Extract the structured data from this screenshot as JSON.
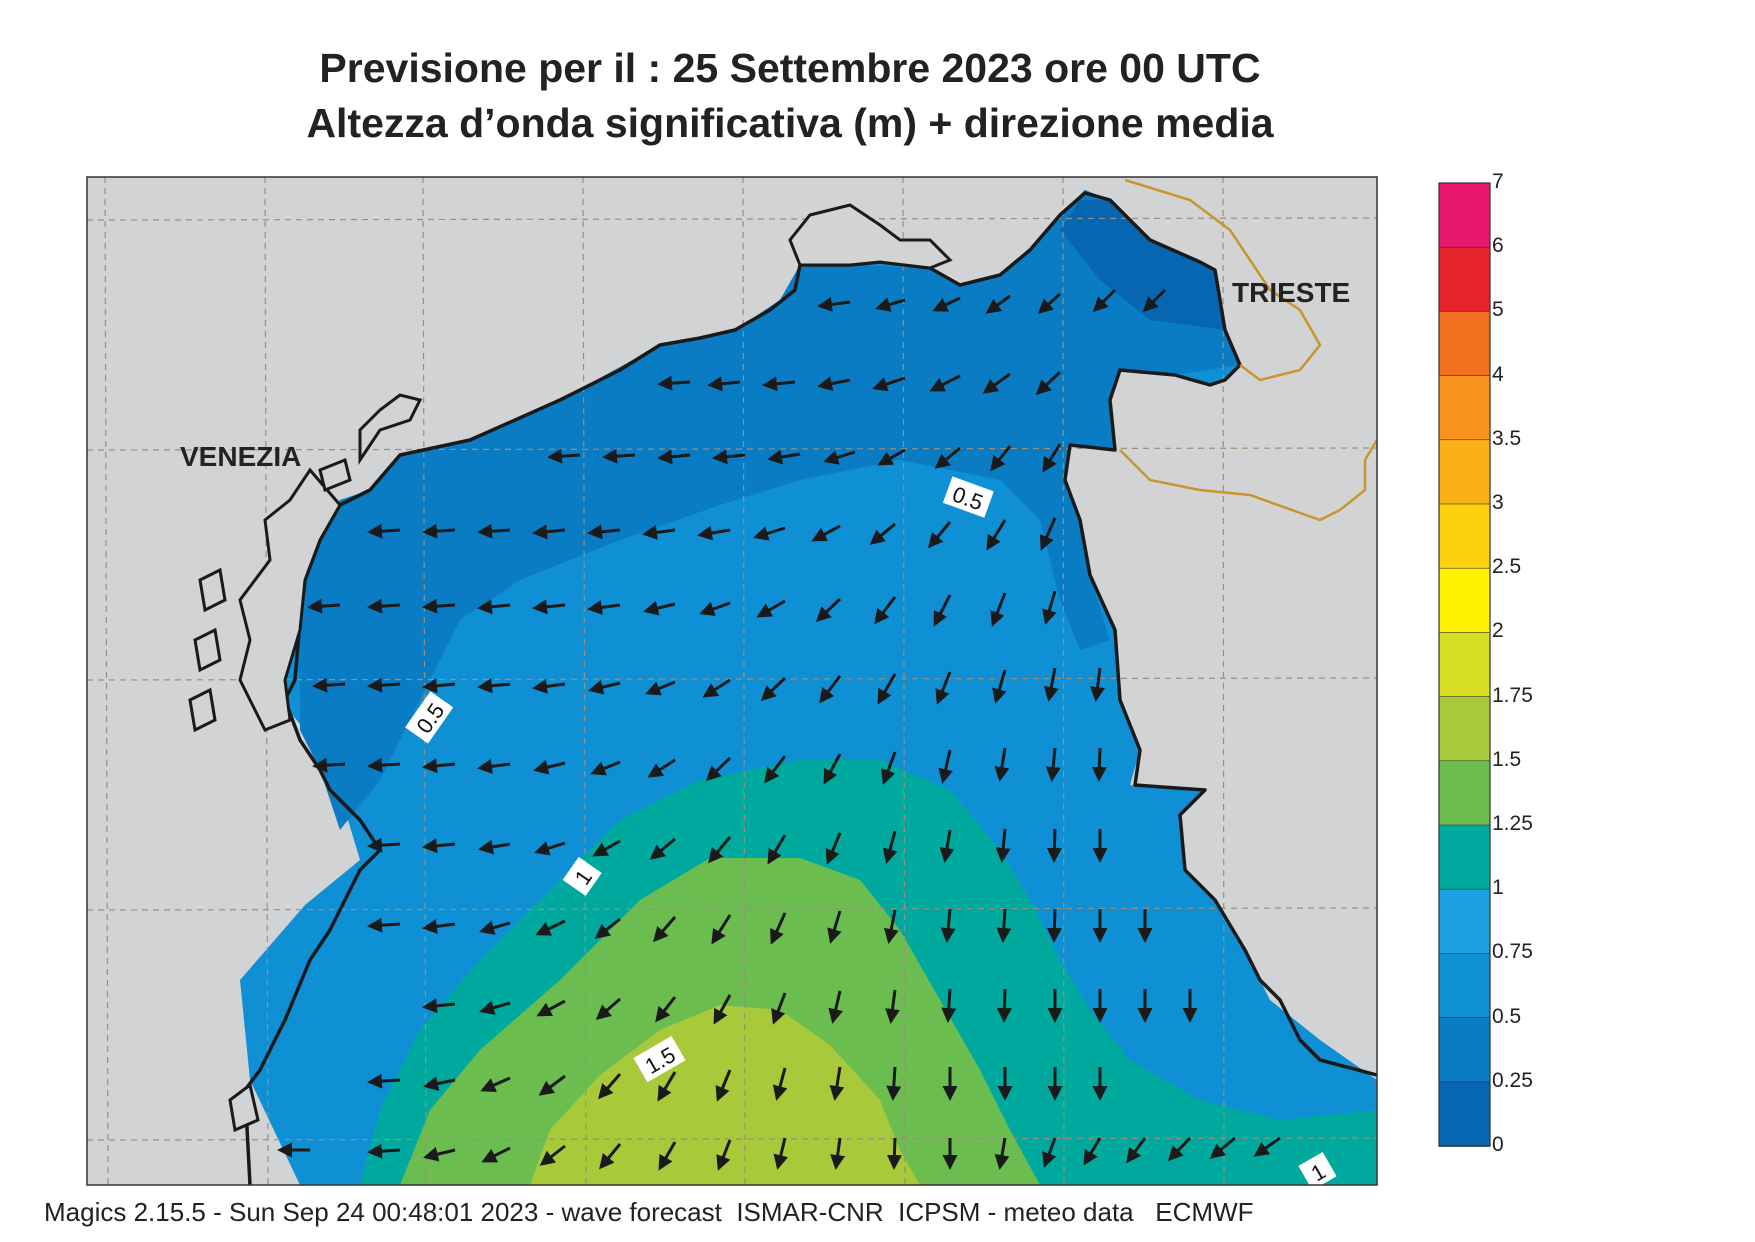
{
  "header": {
    "title_line1": "Previsione per il  :  25 Settembre 2023   ore 00 UTC",
    "title_line2": "Altezza d’onda significativa (m) + direzione media"
  },
  "map": {
    "region": "Northern Adriatic Sea",
    "cities": [
      "VENEZIA",
      "TRIESTE"
    ],
    "contour_labels": [
      "0.5",
      "0.5",
      "1",
      "1.5",
      "1"
    ],
    "arrow_direction": "mean wave direction: mostly westward in the north, south-westward/southward in the central and eastern areas",
    "colors": {
      "land": "#d2d3d5",
      "border_line": "#c8962a",
      "coast_line": "#1a1a1a",
      "graticule": "#9a8f7a"
    }
  },
  "colorbar": {
    "labels": [
      "7",
      "6",
      "5",
      "4",
      "3.5",
      "3",
      "2.5",
      "2",
      "1.75",
      "1.5",
      "1.25",
      "1",
      "0.75",
      "0.5",
      "0.25",
      "0"
    ],
    "colors": [
      "#e8166e",
      "#e5232b",
      "#f07221",
      "#f7931e",
      "#f9b115",
      "#fdd10c",
      "#fff200",
      "#d7df23",
      "#a8c93a",
      "#6bbd4f",
      "#00a99d",
      "#1ba1e2",
      "#0f90d5",
      "#0a7cc4",
      "#0766b2"
    ]
  },
  "footer": {
    "text": "Magics 2.15.5 - Sun Sep 24 00:48:01 2023 - wave forecast  ISMAR-CNR  ICPSM - meteo data   ECMWF"
  }
}
